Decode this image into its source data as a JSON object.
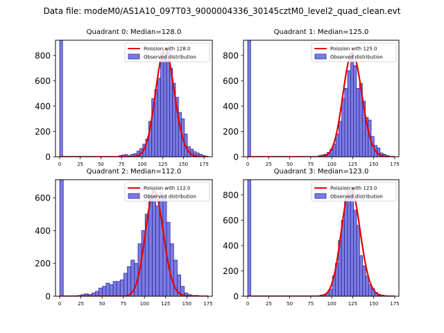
{
  "figure_title": "Data file: modeM0/AS1A10_097T03_9000004336_30145cztM0_level2_quad_clean.evt",
  "colors": {
    "bar_fill": "#7b7be3",
    "bar_edge": "#2a2a9a",
    "poisson_line": "#e60000"
  },
  "chart_data": [
    {
      "type": "bar",
      "title": "Quadrant 0: Median=128.0",
      "median": 128,
      "xlim": [
        -5,
        185
      ],
      "ylim": [
        0,
        920
      ],
      "xticks": [
        0,
        25,
        50,
        75,
        100,
        125,
        150,
        175
      ],
      "yticks": [
        0,
        200,
        400,
        600,
        800
      ],
      "legend": {
        "line": "Poission with 128.0",
        "bars": "Observed distribution",
        "position": "top-right"
      },
      "bin_width": 3.6,
      "x": [
        0,
        72,
        75.6,
        79.2,
        82.8,
        86.4,
        90,
        93.6,
        97.2,
        100.8,
        104.4,
        108,
        111.6,
        115.2,
        118.8,
        122.4,
        126,
        129.6,
        133.2,
        136.8,
        140.4,
        144,
        147.6,
        151.2,
        154.8,
        158.4,
        162,
        165.6,
        169.2,
        172.8,
        176.4
      ],
      "values": [
        920,
        10,
        15,
        18,
        8,
        20,
        25,
        45,
        65,
        100,
        140,
        280,
        460,
        530,
        620,
        820,
        820,
        850,
        700,
        580,
        470,
        350,
        300,
        180,
        80,
        60,
        40,
        30,
        20,
        10,
        5
      ]
    },
    {
      "type": "bar",
      "title": "Quadrant 1: Median=125.0",
      "median": 125,
      "xlim": [
        -5,
        180
      ],
      "ylim": [
        0,
        920
      ],
      "xticks": [
        0,
        25,
        50,
        75,
        100,
        125,
        150,
        175
      ],
      "yticks": [
        0,
        200,
        400,
        600,
        800
      ],
      "legend": {
        "line": "Poission with 125.0",
        "bars": "Observed distribution",
        "position": "top-right"
      },
      "bin_width": 3.5,
      "x": [
        0,
        84,
        87.5,
        91,
        94.5,
        98,
        101.5,
        105,
        108.5,
        112,
        115.5,
        119,
        122.5,
        126,
        129.5,
        133,
        136.5,
        140,
        143.5,
        147,
        150.5,
        154,
        157.5,
        161,
        164.5
      ],
      "values": [
        920,
        10,
        15,
        20,
        35,
        60,
        100,
        180,
        280,
        460,
        540,
        680,
        820,
        720,
        540,
        580,
        440,
        310,
        290,
        160,
        90,
        70,
        30,
        20,
        10
      ]
    },
    {
      "type": "bar",
      "title": "Quadrant 2: Median=112.0",
      "median": 112,
      "xlim": [
        -5,
        180
      ],
      "ylim": [
        0,
        710
      ],
      "xticks": [
        0,
        25,
        50,
        75,
        100,
        125,
        150,
        175
      ],
      "yticks": [
        0,
        200,
        400,
        600
      ],
      "legend": {
        "line": "Poission with 112.0",
        "bars": "Observed distribution",
        "position": "top-right"
      },
      "bin_width": 4.2,
      "x": [
        0,
        21,
        25.2,
        29.4,
        33.6,
        37.8,
        42,
        46.2,
        50.4,
        54.6,
        58.8,
        63,
        67.2,
        71.4,
        75.6,
        79.8,
        84,
        88.2,
        92.4,
        96.6,
        100.8,
        105,
        109.2,
        113.4,
        117.6,
        121.8,
        126,
        130.2,
        134.4,
        138.6,
        142.8,
        147,
        151.2,
        155.4,
        159.6
      ],
      "values": [
        710,
        5,
        10,
        15,
        10,
        20,
        30,
        50,
        60,
        80,
        70,
        90,
        90,
        100,
        140,
        180,
        220,
        200,
        320,
        400,
        500,
        620,
        640,
        550,
        630,
        600,
        450,
        320,
        220,
        130,
        60,
        20,
        10,
        5,
        5
      ]
    },
    {
      "type": "bar",
      "title": "Quadrant 3: Median=123.0",
      "median": 123,
      "xlim": [
        -5,
        180
      ],
      "ylim": [
        0,
        920
      ],
      "xticks": [
        0,
        25,
        50,
        75,
        100,
        125,
        150,
        175
      ],
      "yticks": [
        0,
        200,
        400,
        600,
        800
      ],
      "legend": {
        "line": "Poission with 123.0",
        "bars": "Observed distribution",
        "position": "top-right"
      },
      "bin_width": 3.6,
      "x": [
        0,
        86.4,
        90,
        93.6,
        97.2,
        100.8,
        104.4,
        108,
        111.6,
        115.2,
        118.8,
        122.4,
        126,
        129.6,
        133.2,
        136.8,
        140.4,
        144,
        147.6,
        151.2,
        154.8,
        158.4
      ],
      "values": [
        920,
        10,
        15,
        25,
        55,
        160,
        260,
        440,
        600,
        780,
        820,
        860,
        680,
        560,
        320,
        240,
        160,
        90,
        60,
        30,
        15,
        10
      ]
    }
  ]
}
